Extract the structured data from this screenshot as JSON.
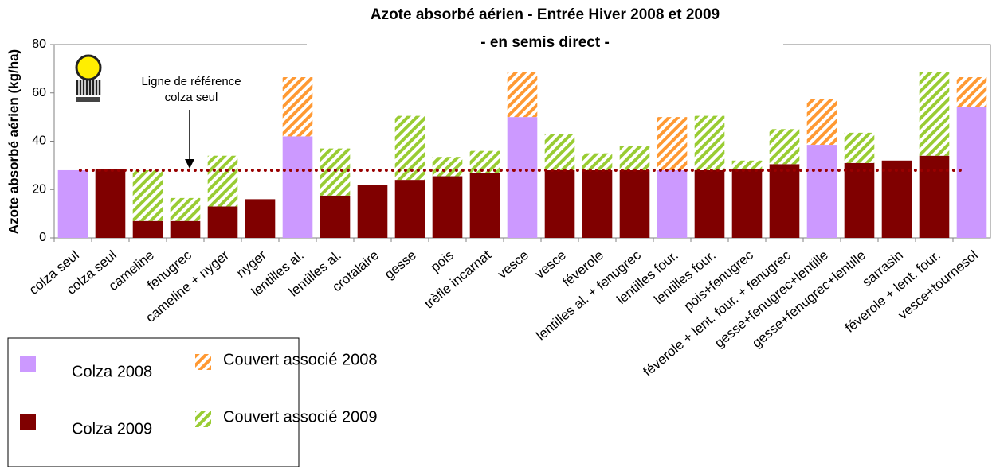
{
  "chart_data": {
    "type": "stacked_bar",
    "title": "Azote absorbé aérien - Entrée Hiver 2008 et 2009",
    "subtitle": "- en semis direct -",
    "y_label": "Azote absorbé aérien (kg/ha)",
    "categories": [
      "colza seul",
      "colza seul",
      "cameline",
      "fenugrec",
      "cameline + nyger",
      "nyger",
      "lentilles al.",
      "lentilles al.",
      "crotalaire",
      "gesse",
      "pois",
      "trèfle incarnat",
      "vesce",
      "vesce",
      "féverole",
      "lentilles al. + fenugrec",
      "lentilles four.",
      "lentilles four.",
      "pois+fenugrec",
      "féverole + lent. four. + fenugrec",
      "gesse+fenugrec+lentille",
      "gesse+fenugrec+lentille",
      "sarrasin",
      "féverole + lent. four.",
      "vesce+tournesol"
    ],
    "series": [
      {
        "name": "Colza 2008",
        "color": "#cc99ff",
        "pattern": "solid",
        "values": [
          28,
          null,
          null,
          null,
          null,
          null,
          42,
          null,
          null,
          null,
          null,
          null,
          50,
          null,
          null,
          null,
          28,
          null,
          null,
          null,
          38.5,
          null,
          null,
          null,
          54
        ]
      },
      {
        "name": "Colza 2009",
        "color": "#800000",
        "pattern": "solid",
        "values": [
          null,
          28.5,
          7,
          7,
          13,
          16,
          null,
          17.5,
          22,
          24,
          25.5,
          27,
          null,
          28,
          28,
          28,
          null,
          28,
          28.5,
          30.5,
          null,
          31,
          32,
          34,
          null
        ]
      },
      {
        "name": "Couvert associé 2008",
        "color": "#ff9933",
        "pattern": "hatch",
        "values": [
          null,
          null,
          null,
          null,
          null,
          null,
          24.5,
          null,
          null,
          null,
          null,
          null,
          18.5,
          null,
          null,
          null,
          22,
          null,
          null,
          null,
          19,
          null,
          null,
          null,
          12.5
        ]
      },
      {
        "name": "Couvert associé 2009",
        "color": "#99cc33",
        "pattern": "hatch",
        "values": [
          null,
          null,
          21,
          9.5,
          21,
          null,
          null,
          19.5,
          null,
          26.5,
          8,
          9,
          null,
          15,
          7,
          10,
          null,
          22.5,
          3.5,
          14.5,
          null,
          12.5,
          null,
          34.5,
          null
        ]
      }
    ],
    "reference_line": {
      "value": 28,
      "color": "#990000",
      "label": [
        "Ligne de référence",
        "colza seul"
      ]
    },
    "ylim": [
      0,
      80
    ],
    "yticks": [
      0,
      20,
      40,
      60,
      80
    ],
    "grid": false
  }
}
